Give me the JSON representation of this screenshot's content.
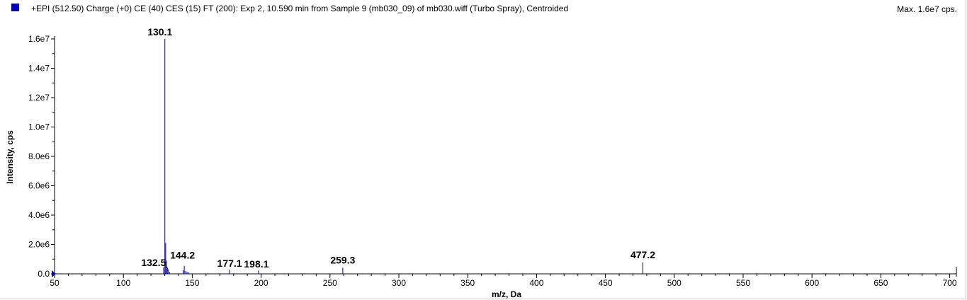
{
  "header": {
    "title": "+EPI (512.50) Charge (+0) CE (40) CES (15) FT (200): Exp 2, 10.590 min from Sample 9 (mb030_09) of mb030.wiff (Turbo Spray), Centroided",
    "max_label": "Max. 1.6e7 cps."
  },
  "colors": {
    "peak": "#0000a0",
    "axis": "#000000",
    "swatch": "#0000c8"
  },
  "chart_data": {
    "type": "bar",
    "xlabel": "m/z, Da",
    "ylabel": "Intensity, cps",
    "xlim": [
      50,
      710
    ],
    "ylim": [
      0,
      16000000
    ],
    "x_ticks": [
      50,
      100,
      150,
      200,
      250,
      300,
      350,
      400,
      450,
      500,
      550,
      600,
      650,
      700
    ],
    "y_ticks": [
      {
        "value": 0,
        "label": "0.0"
      },
      {
        "value": 2000000,
        "label": "2.0e6"
      },
      {
        "value": 4000000,
        "label": "4.0e6"
      },
      {
        "value": 6000000,
        "label": "6.0e6"
      },
      {
        "value": 8000000,
        "label": "8.0e6"
      },
      {
        "value": 10000000,
        "label": "1.0e7"
      },
      {
        "value": 12000000,
        "label": "1.2e7"
      },
      {
        "value": 14000000,
        "label": "1.4e7"
      },
      {
        "value": 16000000,
        "label": "1.6e7"
      }
    ],
    "peaks": [
      {
        "mz": 129.2,
        "intensity": 450000
      },
      {
        "mz": 130.1,
        "intensity": 16000000,
        "label": "130.1"
      },
      {
        "mz": 130.7,
        "intensity": 2100000
      },
      {
        "mz": 131.2,
        "intensity": 900000
      },
      {
        "mz": 131.9,
        "intensity": 350000
      },
      {
        "mz": 132.5,
        "intensity": 250000,
        "label": "132.5"
      },
      {
        "mz": 133.6,
        "intensity": 120000
      },
      {
        "mz": 143.4,
        "intensity": 250000
      },
      {
        "mz": 144.2,
        "intensity": 550000,
        "label": "144.2"
      },
      {
        "mz": 145.2,
        "intensity": 200000
      },
      {
        "mz": 146.2,
        "intensity": 150000
      },
      {
        "mz": 147.3,
        "intensity": 120000
      },
      {
        "mz": 177.1,
        "intensity": 280000,
        "label": "177.1"
      },
      {
        "mz": 198.1,
        "intensity": 230000,
        "label": "198.1"
      },
      {
        "mz": 259.3,
        "intensity": 420000,
        "label": "259.3"
      },
      {
        "mz": 477.2,
        "intensity": 780000,
        "label": "477.2"
      }
    ]
  }
}
